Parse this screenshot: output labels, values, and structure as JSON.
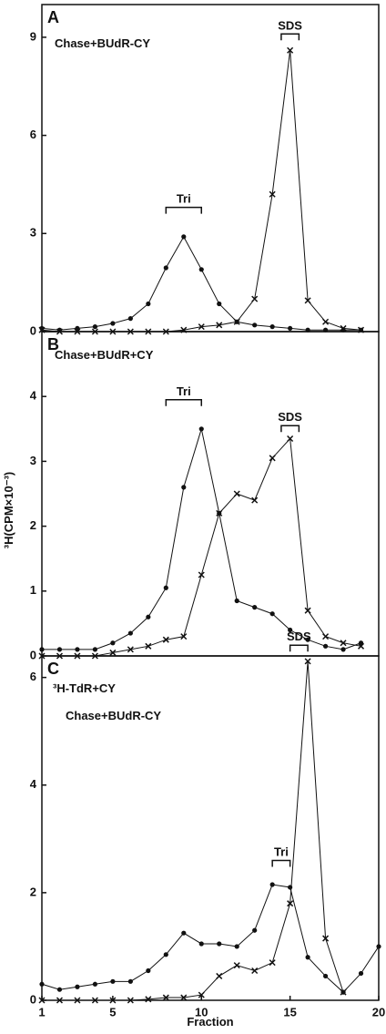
{
  "y_label": "³H(CPM×10⁻³)",
  "chart_data": [
    {
      "type": "line",
      "panel": "A",
      "labels": [
        "Chase+BUdR-CY"
      ],
      "annotations": [
        "Tri",
        "SDS"
      ],
      "x": [
        1,
        2,
        3,
        4,
        5,
        6,
        7,
        8,
        9,
        10,
        11,
        12,
        13,
        14,
        15,
        16,
        17,
        18,
        19,
        20
      ],
      "xlim": [
        1,
        20
      ],
      "ylim": [
        0,
        10
      ],
      "yticks": [
        0,
        3,
        6,
        9
      ],
      "series": [
        {
          "marker": "circle",
          "color": "#111111",
          "values": [
            0.1,
            0.05,
            0.1,
            0.15,
            0.25,
            0.4,
            0.85,
            1.95,
            2.9,
            1.9,
            0.85,
            0.3,
            0.2,
            0.15,
            0.1,
            0.05,
            0.05,
            0.05,
            0.05,
            null
          ]
        },
        {
          "marker": "cross",
          "color": "#111111",
          "values": [
            0.05,
            0,
            0,
            0,
            0,
            0,
            0,
            0,
            0.05,
            0.15,
            0.2,
            0.3,
            1.0,
            4.2,
            8.6,
            0.95,
            0.3,
            0.1,
            0.05,
            null
          ]
        }
      ]
    },
    {
      "type": "line",
      "panel": "B",
      "labels": [
        "Chase+BUdR+CY"
      ],
      "annotations": [
        "Tri",
        "SDS"
      ],
      "x": [
        1,
        2,
        3,
        4,
        5,
        6,
        7,
        8,
        9,
        10,
        11,
        12,
        13,
        14,
        15,
        16,
        17,
        18,
        19,
        20
      ],
      "xlim": [
        1,
        20
      ],
      "ylim": [
        0,
        5
      ],
      "yticks": [
        0,
        1,
        2,
        3,
        4
      ],
      "series": [
        {
          "marker": "circle",
          "color": "#111111",
          "values": [
            0.1,
            0.1,
            0.1,
            0.1,
            0.2,
            0.35,
            0.6,
            1.05,
            2.6,
            3.5,
            2.2,
            0.85,
            0.75,
            0.65,
            0.4,
            0.25,
            0.15,
            0.1,
            0.2,
            null
          ]
        },
        {
          "marker": "cross",
          "color": "#111111",
          "values": [
            0,
            0,
            0,
            0,
            0.05,
            0.1,
            0.15,
            0.25,
            0.3,
            1.25,
            2.2,
            2.5,
            2.4,
            3.05,
            3.35,
            0.7,
            0.3,
            0.2,
            0.15,
            null
          ]
        }
      ]
    },
    {
      "type": "line",
      "panel": "C",
      "labels": [
        "³H-TdR+CY",
        "Chase+BUdR-CY"
      ],
      "annotations": [
        "Tri",
        "SDS"
      ],
      "x_label": "Fraction",
      "x": [
        1,
        2,
        3,
        4,
        5,
        6,
        7,
        8,
        9,
        10,
        11,
        12,
        13,
        14,
        15,
        16,
        17,
        18,
        19,
        20
      ],
      "xlim": [
        1,
        20
      ],
      "xticks": [
        1,
        5,
        10,
        15,
        20
      ],
      "ylim": [
        0,
        6.4
      ],
      "yticks": [
        0,
        2,
        4,
        6
      ],
      "series": [
        {
          "marker": "circle",
          "color": "#111111",
          "values": [
            0.3,
            0.2,
            0.25,
            0.3,
            0.35,
            0.35,
            0.55,
            0.85,
            1.25,
            1.05,
            1.05,
            1.0,
            1.3,
            2.15,
            2.1,
            0.8,
            0.45,
            0.15,
            0.5,
            1.0
          ]
        },
        {
          "marker": "cross",
          "color": "#111111",
          "values": [
            0,
            0,
            0,
            0,
            0,
            0,
            0.02,
            0.05,
            0.05,
            0.1,
            0.45,
            0.65,
            0.55,
            0.7,
            1.8,
            6.3,
            1.15,
            0.15,
            null,
            null
          ]
        }
      ]
    }
  ]
}
